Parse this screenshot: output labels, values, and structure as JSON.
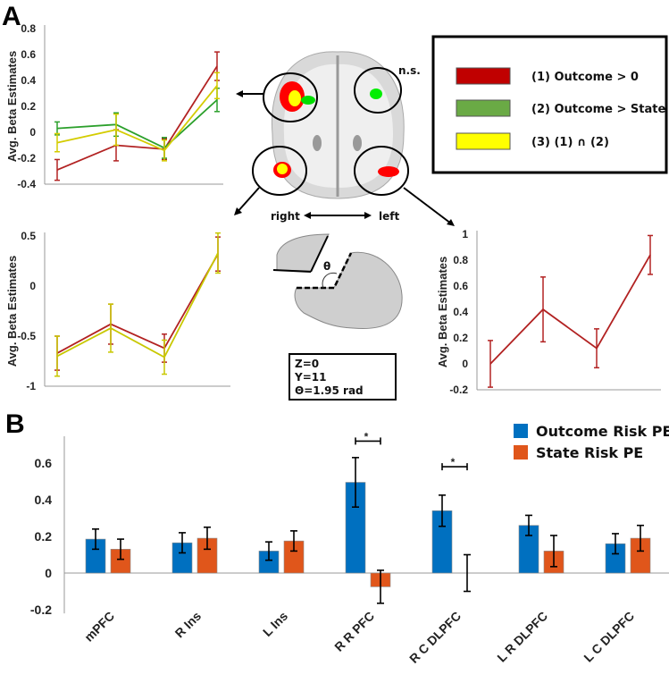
{
  "panel_labels": {
    "a": "A",
    "b": "B"
  },
  "legend_a": [
    {
      "label": "(1)  Outcome > 0",
      "color": "#c00000"
    },
    {
      "label": "(2) Outcome > State",
      "color": "#6aaa45"
    },
    {
      "label": "(3) (1) ∩ (2)",
      "color": "#ffff00"
    }
  ],
  "brain": {
    "ns_label": "n.s.",
    "right_label": "right",
    "left_label": "left",
    "theta_label": "θ",
    "info": [
      "Z=0",
      "Y=11",
      "Θ=1.95 rad"
    ]
  },
  "chart_data": [
    {
      "type": "line",
      "id": "top-left",
      "ylabel": "Avg. Beta Estimates",
      "ylim": [
        -0.4,
        0.8
      ],
      "yticks": [
        "0.8",
        "0.6",
        "0.4",
        "0.2",
        "0",
        "-0.2",
        "-0.4"
      ],
      "ytick_values": [
        0.8,
        0.6,
        0.4,
        0.2,
        0,
        -0.2,
        -0.4
      ],
      "x": [
        1,
        2,
        3,
        4
      ],
      "series": [
        {
          "name": "Outcome > 0",
          "color": "#b22222",
          "values": [
            -0.29,
            -0.1,
            -0.13,
            0.51
          ],
          "errors": [
            0.08,
            0.12,
            0.08,
            0.11
          ]
        },
        {
          "name": "Outcome > State",
          "color": "#2ca02c",
          "values": [
            0.03,
            0.06,
            -0.12,
            0.25
          ],
          "errors": [
            0.05,
            0.09,
            0.08,
            0.09
          ]
        },
        {
          "name": "Intersection",
          "color": "#d4cc00",
          "values": [
            -0.08,
            0.02,
            -0.14,
            0.36
          ],
          "errors": [
            0.07,
            0.12,
            0.08,
            0.1
          ]
        }
      ]
    },
    {
      "type": "line",
      "id": "bottom-left",
      "ylabel": "Avg. Beta Estimates",
      "ylim": [
        -1,
        0.5
      ],
      "yticks": [
        "0.5",
        "0",
        "-0.5",
        "-1"
      ],
      "ytick_values": [
        0.5,
        0,
        -0.5,
        -1
      ],
      "x": [
        1,
        2,
        3,
        4
      ],
      "series": [
        {
          "name": "Outcome > 0",
          "color": "#b22222",
          "values": [
            -0.67,
            -0.38,
            -0.62,
            0.32
          ],
          "errors": [
            0.17,
            0.2,
            0.14,
            0.17
          ]
        },
        {
          "name": "Intersection",
          "color": "#c8c800",
          "values": [
            -0.7,
            -0.42,
            -0.71,
            0.33
          ],
          "errors": [
            0.2,
            0.24,
            0.17,
            0.2
          ]
        }
      ]
    },
    {
      "type": "line",
      "id": "right",
      "ylabel": "Avg. Beta Estimates",
      "ylim": [
        -0.2,
        1
      ],
      "yticks": [
        "1",
        "0.8",
        "0.6",
        "0.4",
        "0.2",
        "0",
        "-0.2"
      ],
      "ytick_values": [
        1,
        0.8,
        0.6,
        0.4,
        0.2,
        0,
        -0.2
      ],
      "x": [
        1,
        2,
        3,
        4
      ],
      "series": [
        {
          "name": "Outcome > 0",
          "color": "#b22222",
          "values": [
            0.0,
            0.42,
            0.12,
            0.84
          ],
          "errors": [
            0.18,
            0.25,
            0.15,
            0.15
          ]
        }
      ]
    },
    {
      "type": "bar",
      "id": "panel-b",
      "ylim": [
        -0.2,
        0.75
      ],
      "yticks": [
        "0.6",
        "0.4",
        "0.2",
        "0",
        "-0.2"
      ],
      "ytick_values": [
        0.6,
        0.4,
        0.2,
        0,
        -0.2
      ],
      "categories": [
        "mPFC",
        "R Ins",
        "L Ins",
        "R R PFC",
        "R C DLPFC",
        "L R DLPFC",
        "L C DLPFC"
      ],
      "legend_position": "top-right",
      "series": [
        {
          "name": "Outcome Risk PE",
          "color": "#0070c0",
          "values": [
            0.185,
            0.165,
            0.12,
            0.495,
            0.34,
            0.26,
            0.16
          ],
          "errors": [
            0.055,
            0.055,
            0.05,
            0.135,
            0.085,
            0.055,
            0.055
          ]
        },
        {
          "name": "State Risk PE",
          "color": "#e0561b",
          "values": [
            0.13,
            0.19,
            0.175,
            -0.075,
            0.0,
            0.12,
            0.19
          ],
          "errors": [
            0.055,
            0.06,
            0.055,
            0.09,
            0.1,
            0.085,
            0.07
          ]
        }
      ],
      "significance": [
        {
          "category_index": 3,
          "label": "*",
          "level": 0.72
        },
        {
          "category_index": 4,
          "label": "*",
          "level": 0.58
        }
      ]
    }
  ]
}
